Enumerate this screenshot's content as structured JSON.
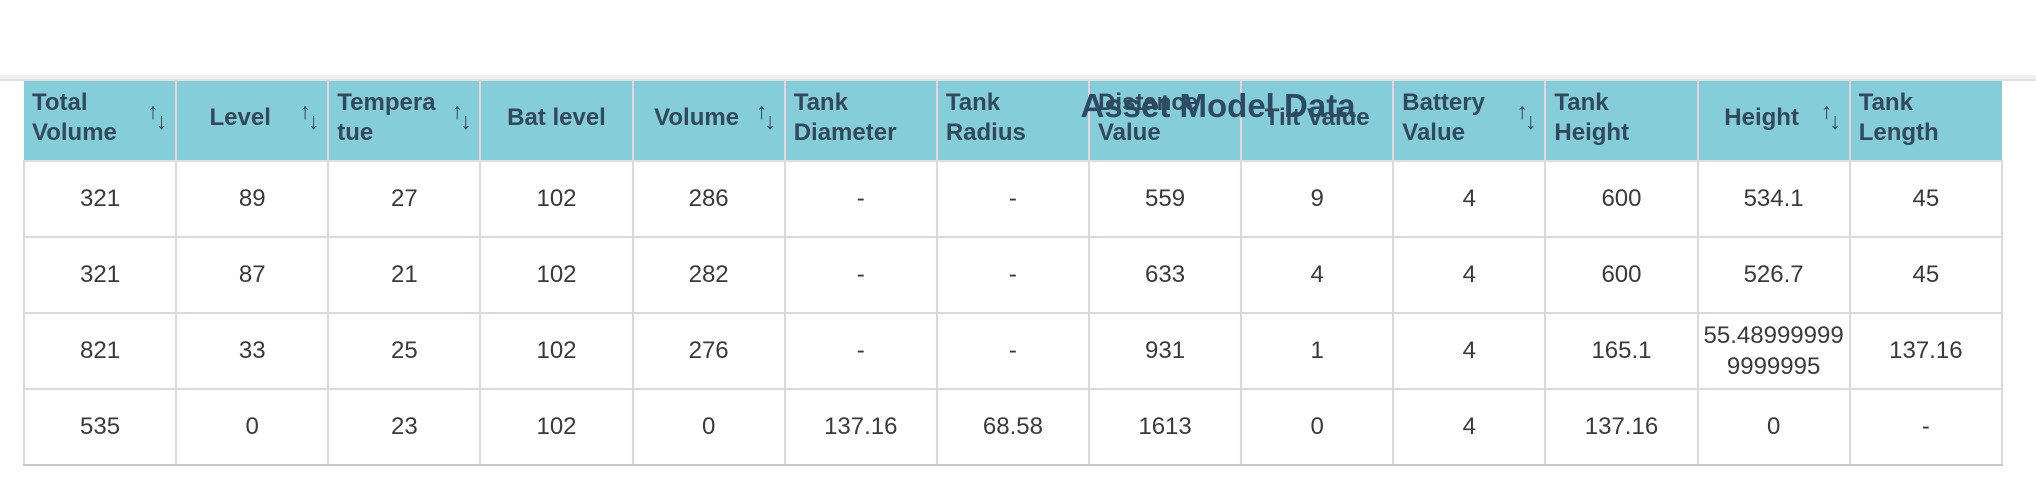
{
  "page": {
    "title": "Asset Model Data"
  },
  "icons": {
    "sort_up": "↑",
    "sort_down": "↓"
  },
  "colors": {
    "header_bg": "#85cdd8",
    "header_text": "#32495c",
    "title_color": "#2e4a63",
    "body_text": "#3a3a3a",
    "border": "#ddd8e0",
    "row_divider": "#d8d2da",
    "header_divider": "#e9d2d9"
  },
  "table": {
    "columns": [
      {
        "label": "Total Volume",
        "sortable": true
      },
      {
        "label": "Level",
        "sortable": true
      },
      {
        "label": "Tempera tue",
        "sortable": true
      },
      {
        "label": "Bat level",
        "sortable": false
      },
      {
        "label": "Volume",
        "sortable": true
      },
      {
        "label": "Tank Diameter",
        "sortable": false
      },
      {
        "label": "Tank Radius",
        "sortable": false
      },
      {
        "label": "Distance Value",
        "sortable": false
      },
      {
        "label": "Tilt Value",
        "sortable": false
      },
      {
        "label": "Battery Value",
        "sortable": true
      },
      {
        "label": "Tank Height",
        "sortable": false
      },
      {
        "label": "Height",
        "sortable": true
      },
      {
        "label": "Tank Length",
        "sortable": false
      }
    ],
    "rows": [
      [
        "321",
        "89",
        "27",
        "102",
        "286",
        "-",
        "-",
        "559",
        "9",
        "4",
        "600",
        "534.1",
        "45"
      ],
      [
        "321",
        "87",
        "21",
        "102",
        "282",
        "-",
        "-",
        "633",
        "4",
        "4",
        "600",
        "526.7",
        "45"
      ],
      [
        "821",
        "33",
        "25",
        "102",
        "276",
        "-",
        "-",
        "931",
        "1",
        "4",
        "165.1",
        "55.489999999999995",
        "137.16"
      ],
      [
        "535",
        "0",
        "23",
        "102",
        "0",
        "137.16",
        "68.58",
        "1613",
        "0",
        "4",
        "137.16",
        "0",
        "-"
      ]
    ]
  }
}
